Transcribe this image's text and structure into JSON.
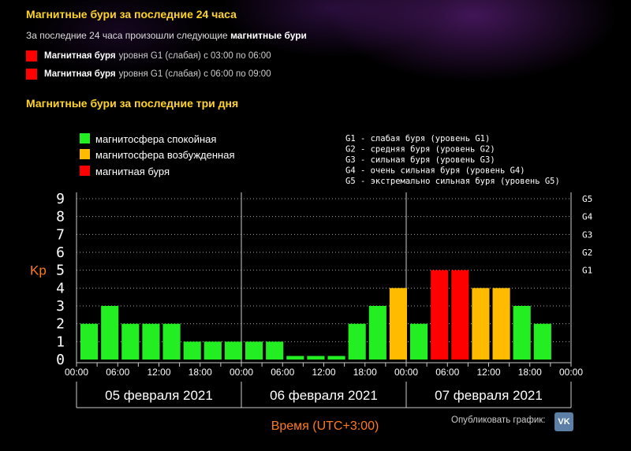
{
  "header": {
    "title_24h": "Магнитные бури за последние 24 часа",
    "subtitle_prefix": "За последние 24 часа произошли следующие",
    "subtitle_bold": "магнитные бури",
    "title_3d": "Магнитные бури за последние три дня"
  },
  "storms": [
    {
      "bold": "Магнитная буря",
      "text": "уровня G1 (слабая) с 03:00 по 06:00",
      "color": "#ff0000"
    },
    {
      "bold": "Магнитная буря",
      "text": "уровня G1 (слабая) с 06:00 по 09:00",
      "color": "#ff0000"
    }
  ],
  "share": {
    "label": "Опубликовать график:",
    "vk_label": "VK"
  },
  "chart_data": {
    "type": "bar",
    "ylabel": "Kp",
    "xlabel": "Время (UTC+3:00)",
    "ylim": [
      0,
      9
    ],
    "y_ticks": [
      "0",
      "1",
      "2",
      "3",
      "4",
      "5",
      "6",
      "7",
      "8",
      "9"
    ],
    "right_ticks": [
      {
        "value": 5,
        "label": "G1"
      },
      {
        "value": 6,
        "label": "G2"
      },
      {
        "value": 7,
        "label": "G3"
      },
      {
        "value": 8,
        "label": "G4"
      },
      {
        "value": 9,
        "label": "G5"
      }
    ],
    "x_tick_labels": [
      "00:00",
      "06:00",
      "12:00",
      "18:00",
      "00:00",
      "06:00",
      "12:00",
      "18:00",
      "00:00",
      "06:00",
      "12:00",
      "18:00",
      "00:00"
    ],
    "days": [
      "05 февраля 2021",
      "06 февраля 2021",
      "07 февраля 2021"
    ],
    "interval_hours": 3,
    "values": [
      2,
      3,
      2,
      2,
      2,
      1,
      1,
      1,
      1,
      1,
      0.2,
      0.2,
      0.2,
      2,
      3,
      4,
      2,
      5,
      5,
      4,
      4,
      3,
      2
    ],
    "colors": {
      "quiet": "#22ee22",
      "active": "#ffbb00",
      "storm": "#ff0000"
    },
    "legend": [
      {
        "label": "магнитосфера спокойная",
        "key": "quiet"
      },
      {
        "label": "магнитосфера возбужденная",
        "key": "active"
      },
      {
        "label": "магнитная буря",
        "key": "storm"
      }
    ],
    "g_legend": [
      "G1 - слабая буря (уровень G1)",
      "G2 - средняя буря (уровень G2)",
      "G3 - сильная буря (уровень G3)",
      "G4 - очень сильная буря (уровень G4)",
      "G5 - экстремально сильная буря (уровень G5)"
    ],
    "grid": "dotted"
  }
}
